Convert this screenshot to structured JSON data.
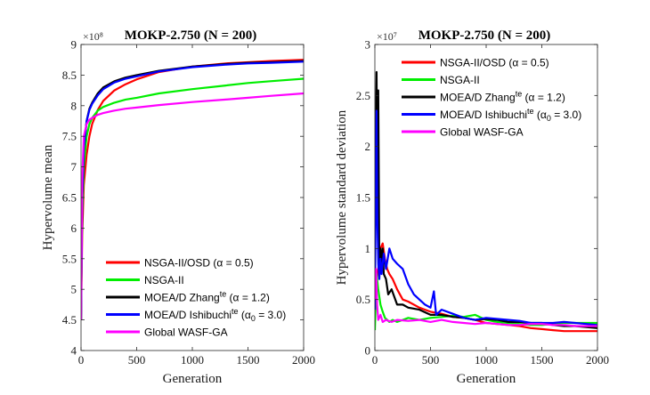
{
  "chart_data": [
    {
      "type": "line",
      "title": "MOKP-2.750 (N = 200)",
      "xlabel": "Generation",
      "ylabel": "Hypervolume mean",
      "exponent": "×10⁸",
      "xlim": [
        0,
        2000
      ],
      "ylim": [
        4,
        9
      ],
      "xticks": [
        "0",
        "500",
        "1000",
        "1500",
        "2000"
      ],
      "yticks": [
        "4",
        "4.5",
        "5",
        "5.5",
        "6",
        "6.5",
        "7",
        "7.5",
        "8",
        "8.5",
        "9"
      ],
      "grid": false,
      "legend_position": "bottom-right",
      "series": [
        {
          "name": "NSGA-II/OSD (α = 0.5)",
          "color": "#ff0000",
          "x": [
            0,
            10,
            25,
            50,
            75,
            100,
            150,
            200,
            300,
            400,
            500,
            700,
            1000,
            1300,
            1500,
            1700,
            2000
          ],
          "values": [
            4.5,
            5.9,
            6.7,
            7.2,
            7.5,
            7.7,
            7.93,
            8.08,
            8.25,
            8.35,
            8.43,
            8.55,
            8.64,
            8.69,
            8.71,
            8.73,
            8.75
          ]
        },
        {
          "name": "NSGA-II",
          "color": "#00ee00",
          "x": [
            0,
            10,
            25,
            50,
            75,
            100,
            150,
            200,
            300,
            400,
            500,
            700,
            1000,
            1300,
            1500,
            1700,
            2000
          ],
          "values": [
            4.5,
            6.2,
            7.0,
            7.5,
            7.7,
            7.8,
            7.92,
            7.98,
            8.05,
            8.1,
            8.13,
            8.2,
            8.27,
            8.33,
            8.37,
            8.4,
            8.44
          ]
        },
        {
          "name": "MOEA/D Zhang^te (α = 1.2)",
          "color": "#000000",
          "x": [
            0,
            10,
            25,
            50,
            75,
            100,
            150,
            200,
            300,
            400,
            500,
            700,
            1000,
            1300,
            1500,
            1700,
            2000
          ],
          "values": [
            4.5,
            6.5,
            7.3,
            7.75,
            7.95,
            8.05,
            8.2,
            8.3,
            8.4,
            8.46,
            8.5,
            8.57,
            8.64,
            8.68,
            8.7,
            8.71,
            8.73
          ]
        },
        {
          "name": "MOEA/D Ishibuchi^te (α0 = 3.0)",
          "color": "#0000ff",
          "x": [
            0,
            10,
            25,
            50,
            75,
            100,
            150,
            200,
            300,
            400,
            500,
            700,
            1000,
            1300,
            1500,
            1700,
            2000
          ],
          "values": [
            4.5,
            6.5,
            7.3,
            7.75,
            7.93,
            8.03,
            8.17,
            8.27,
            8.38,
            8.44,
            8.48,
            8.56,
            8.63,
            8.67,
            8.69,
            8.7,
            8.72
          ]
        },
        {
          "name": "Global WASF-GA",
          "color": "#ff00ff",
          "x": [
            0,
            10,
            25,
            50,
            75,
            100,
            150,
            200,
            300,
            400,
            500,
            700,
            1000,
            1300,
            1500,
            1700,
            2000
          ],
          "values": [
            4.5,
            6.8,
            7.5,
            7.7,
            7.77,
            7.8,
            7.85,
            7.88,
            7.92,
            7.95,
            7.97,
            8.01,
            8.06,
            8.1,
            8.13,
            8.16,
            8.2
          ]
        }
      ]
    },
    {
      "type": "line",
      "title": "MOKP-2.750 (N = 200)",
      "xlabel": "Generation",
      "ylabel": "Hypervolume standard deviation",
      "exponent": "×10⁷",
      "xlim": [
        0,
        2000
      ],
      "ylim": [
        0,
        3
      ],
      "xticks": [
        "0",
        "500",
        "1000",
        "1500",
        "2000"
      ],
      "yticks": [
        "0",
        "0.5",
        "1",
        "1.5",
        "2",
        "2.5",
        "3"
      ],
      "grid": false,
      "legend_position": "top-right",
      "series": [
        {
          "name": "NSGA-II/OSD (α = 0.5)",
          "color": "#ff0000",
          "x": [
            0,
            15,
            30,
            50,
            70,
            90,
            110,
            130,
            160,
            200,
            250,
            300,
            400,
            500,
            600,
            700,
            800,
            900,
            1000,
            1100,
            1200,
            1300,
            1400,
            1500,
            1600,
            1700,
            1800,
            1900,
            2000
          ],
          "values": [
            0.3,
            0.7,
            0.8,
            1.0,
            1.05,
            0.9,
            0.8,
            0.75,
            0.7,
            0.6,
            0.5,
            0.48,
            0.42,
            0.38,
            0.36,
            0.33,
            0.32,
            0.3,
            0.27,
            0.26,
            0.25,
            0.24,
            0.22,
            0.21,
            0.2,
            0.19,
            0.19,
            0.19,
            0.19
          ]
        },
        {
          "name": "NSGA-II",
          "color": "#00ee00",
          "x": [
            0,
            15,
            30,
            50,
            70,
            90,
            110,
            130,
            160,
            200,
            250,
            300,
            400,
            500,
            600,
            700,
            800,
            900,
            1000,
            1100,
            1200,
            1300,
            1400,
            1500,
            1600,
            1700,
            1800,
            1900,
            2000
          ],
          "values": [
            0.2,
            0.75,
            0.6,
            0.45,
            0.38,
            0.32,
            0.3,
            0.28,
            0.3,
            0.28,
            0.3,
            0.32,
            0.3,
            0.32,
            0.33,
            0.34,
            0.33,
            0.35,
            0.3,
            0.28,
            0.27,
            0.26,
            0.25,
            0.25,
            0.26,
            0.27,
            0.27,
            0.27,
            0.27
          ]
        },
        {
          "name": "MOEA/D Zhang^te (α = 1.2)",
          "color": "#000000",
          "x": [
            0,
            8,
            15,
            22,
            30,
            40,
            50,
            60,
            70,
            80,
            100,
            120,
            150,
            200,
            250,
            300,
            400,
            500,
            600,
            700,
            800,
            900,
            1000,
            1100,
            1200,
            1300,
            1400,
            1500,
            1600,
            1700,
            1800,
            1900,
            2000
          ],
          "values": [
            0.5,
            2.0,
            2.73,
            1.4,
            2.55,
            0.8,
            1.0,
            0.85,
            1.0,
            0.75,
            0.7,
            0.55,
            0.6,
            0.45,
            0.45,
            0.42,
            0.4,
            0.35,
            0.35,
            0.33,
            0.32,
            0.3,
            0.31,
            0.3,
            0.28,
            0.28,
            0.27,
            0.27,
            0.25,
            0.24,
            0.24,
            0.23,
            0.22
          ]
        },
        {
          "name": "MOEA/D Ishibuchi^te (α0 = 3.0)",
          "color": "#0000ff",
          "x": [
            0,
            8,
            15,
            22,
            30,
            40,
            50,
            60,
            80,
            100,
            130,
            160,
            200,
            250,
            300,
            350,
            400,
            450,
            500,
            530,
            550,
            600,
            700,
            800,
            900,
            1000,
            1100,
            1200,
            1300,
            1400,
            1500,
            1600,
            1700,
            1800,
            1900,
            2000
          ],
          "values": [
            0.4,
            1.5,
            2.35,
            1.3,
            0.85,
            0.7,
            0.9,
            0.75,
            0.95,
            0.8,
            1.0,
            0.9,
            0.85,
            0.8,
            0.65,
            0.55,
            0.5,
            0.45,
            0.42,
            0.58,
            0.35,
            0.4,
            0.36,
            0.32,
            0.3,
            0.32,
            0.31,
            0.3,
            0.29,
            0.27,
            0.27,
            0.27,
            0.28,
            0.27,
            0.26,
            0.25
          ]
        },
        {
          "name": "Global WASF-GA",
          "color": "#ff00ff",
          "x": [
            0,
            10,
            20,
            30,
            50,
            70,
            100,
            150,
            200,
            300,
            400,
            500,
            600,
            700,
            800,
            900,
            1000,
            1100,
            1200,
            1300,
            1400,
            1500,
            1600,
            1700,
            1800,
            1900,
            2000
          ],
          "values": [
            0.5,
            0.8,
            0.45,
            0.3,
            0.35,
            0.28,
            0.3,
            0.28,
            0.3,
            0.29,
            0.3,
            0.28,
            0.3,
            0.28,
            0.27,
            0.26,
            0.27,
            0.26,
            0.25,
            0.25,
            0.26,
            0.26,
            0.25,
            0.25,
            0.24,
            0.24,
            0.24
          ]
        }
      ]
    }
  ]
}
